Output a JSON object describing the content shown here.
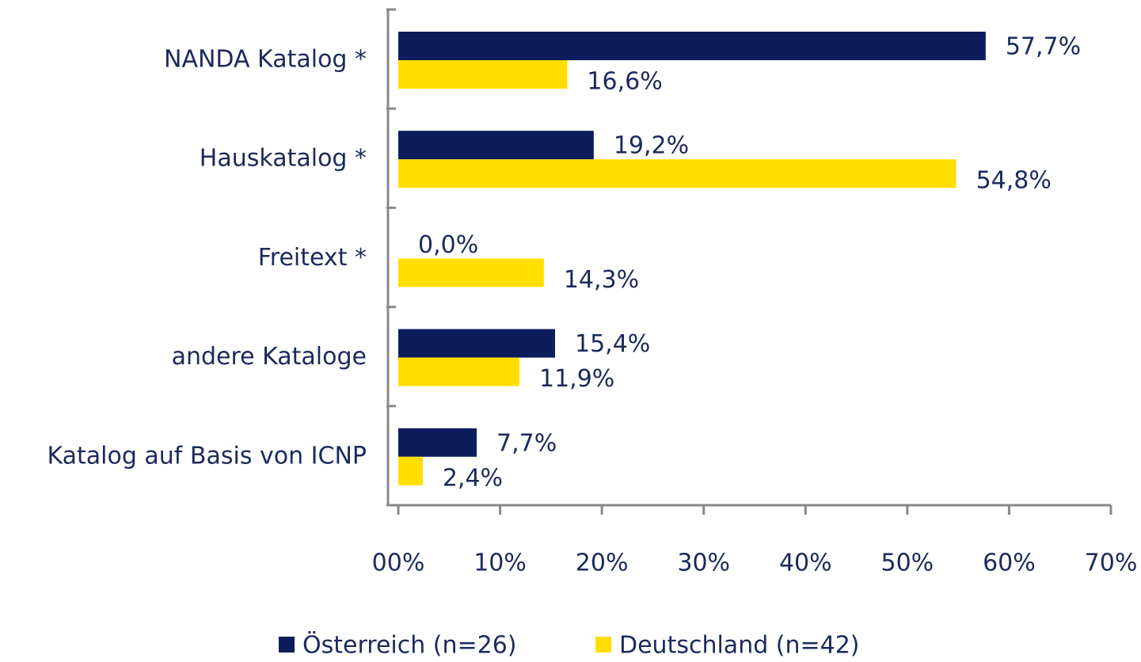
{
  "chart_data": {
    "type": "barh",
    "categories": [
      "NANDA Katalog *",
      "Hauskatalog *",
      "Freitext *",
      "andere Kataloge",
      "Katalog auf Basis von ICNP"
    ],
    "series": [
      {
        "name": "Österreich (n=26)",
        "color": "#0d1d5c",
        "values": [
          57.7,
          19.2,
          0.0,
          15.4,
          7.7
        ],
        "value_labels": [
          "57,7%",
          "19,2%",
          "0,0%",
          "15,4%",
          "7,7%"
        ]
      },
      {
        "name": "Deutschland (n=42)",
        "color": "#ffde00",
        "values": [
          16.6,
          54.8,
          14.3,
          11.9,
          2.4
        ],
        "value_labels": [
          "16,6%",
          "54,8%",
          "14,3%",
          "11,9%",
          "2,4%"
        ]
      }
    ],
    "xlim": [
      0,
      70
    ],
    "xticks": [
      {
        "value": 0,
        "label": "00%"
      },
      {
        "value": 10,
        "label": "10%"
      },
      {
        "value": 20,
        "label": "20%"
      },
      {
        "value": 30,
        "label": "30%"
      },
      {
        "value": 40,
        "label": "40%"
      },
      {
        "value": 50,
        "label": "50%"
      },
      {
        "value": 60,
        "label": "60%"
      },
      {
        "value": 70,
        "label": "70%"
      }
    ],
    "legend": "bottom"
  }
}
